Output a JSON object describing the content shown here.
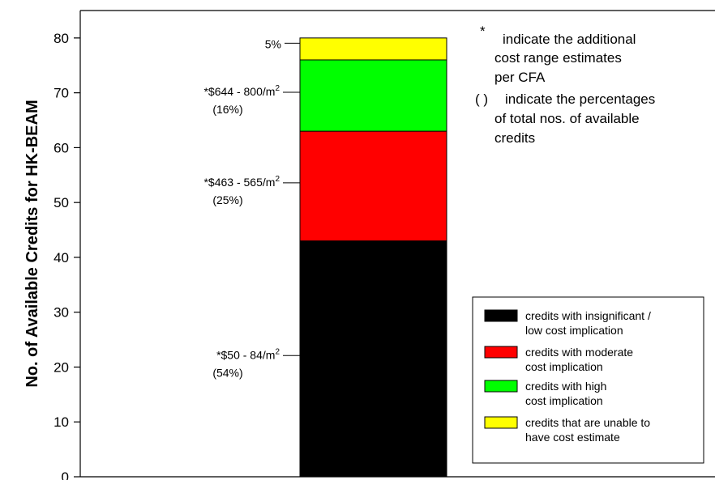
{
  "chart_data": {
    "type": "bar",
    "ylabel": "No. of Available Credits for HK-BEAM",
    "xlabel": "",
    "ylim": [
      0,
      85
    ],
    "yticks": [
      0,
      10,
      20,
      30,
      40,
      50,
      60,
      70,
      80
    ],
    "segments": [
      {
        "name": "credits with insignificant / low cost implication",
        "value": 43,
        "color": "#000000",
        "cost_label": "*$50 - 84/m",
        "sup": "2",
        "pct_label": "(54%)"
      },
      {
        "name": "credits with moderate cost implication",
        "value": 20,
        "color": "#ff0000",
        "cost_label": "*$463 - 565/m",
        "sup": "2",
        "pct_label": "(25%)"
      },
      {
        "name": "credits with high cost implication",
        "value": 13,
        "color": "#00ff00",
        "cost_label": "*$644 - 800/m",
        "sup": "2",
        "pct_label": "(16%)"
      },
      {
        "name": "credits that are unable to have cost estimate",
        "value": 4,
        "color": "#ffff00",
        "cost_label": "",
        "sup": "",
        "pct_label": "5%"
      }
    ],
    "notes": [
      {
        "symbol": "*",
        "lines": [
          "indicate the additional",
          "cost range estimates",
          "per CFA"
        ]
      },
      {
        "symbol": "( )",
        "lines": [
          "indicate the percentages",
          "of total nos. of available",
          "credits"
        ]
      }
    ],
    "legend": [
      {
        "lines": [
          "credits with insignificant /",
          "low cost implication"
        ],
        "color": "#000000"
      },
      {
        "lines": [
          "credits with moderate",
          "cost implication"
        ],
        "color": "#ff0000"
      },
      {
        "lines": [
          "credits with high",
          "cost implication"
        ],
        "color": "#00ff00"
      },
      {
        "lines": [
          "credits that are unable to",
          "have cost estimate"
        ],
        "color": "#ffff00"
      }
    ],
    "legend_position": "bottom-right"
  }
}
